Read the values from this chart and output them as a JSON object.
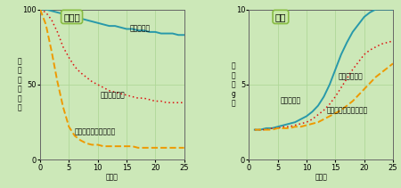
{
  "bg_color": "#cce8b8",
  "plot_bg_color": "#cce8b8",
  "left_title": "生存率",
  "right_title": "成長",
  "xlabel": "日　数",
  "left_ylabel": "生\n存\n率\n（\n％\n）",
  "right_ylabel": "体\n重\n（\ng\n）",
  "left_xlim": [
    0,
    25
  ],
  "left_ylim": [
    0,
    100
  ],
  "right_xlim": [
    0,
    25
  ],
  "right_ylim": [
    0,
    10
  ],
  "left_xticks": [
    0,
    5,
    10,
    15,
    20,
    25
  ],
  "left_yticks": [
    0,
    50,
    100
  ],
  "right_xticks": [
    0,
    5,
    10,
    15,
    20,
    25
  ],
  "right_yticks": [
    0,
    5,
    10
  ],
  "wood_color": "#2899aa",
  "metal_color": "#dd1111",
  "concrete_color": "#ee9900",
  "survival_days": [
    0,
    1,
    2,
    3,
    4,
    5,
    6,
    7,
    8,
    9,
    10,
    11,
    12,
    13,
    14,
    15,
    16,
    17,
    18,
    19,
    20,
    21,
    22,
    23,
    24,
    25
  ],
  "survival_wood": [
    100,
    100,
    99,
    98,
    97,
    96,
    95,
    94,
    93,
    92,
    91,
    90,
    89,
    89,
    88,
    87,
    87,
    86,
    86,
    85,
    85,
    84,
    84,
    84,
    83,
    83
  ],
  "survival_metal": [
    100,
    98,
    93,
    85,
    75,
    68,
    62,
    58,
    55,
    52,
    50,
    48,
    46,
    45,
    44,
    43,
    42,
    41,
    41,
    40,
    39,
    39,
    38,
    38,
    38,
    38
  ],
  "survival_concrete": [
    100,
    90,
    72,
    52,
    35,
    22,
    16,
    13,
    11,
    10,
    10,
    9,
    9,
    9,
    9,
    9,
    9,
    8,
    8,
    8,
    8,
    8,
    8,
    8,
    8,
    8
  ],
  "growth_days": [
    1,
    2,
    3,
    4,
    5,
    6,
    7,
    8,
    9,
    10,
    11,
    12,
    13,
    14,
    15,
    16,
    17,
    18,
    19,
    20,
    21,
    22,
    23,
    24,
    25
  ],
  "growth_wood": [
    2.0,
    2.0,
    2.1,
    2.1,
    2.2,
    2.3,
    2.4,
    2.5,
    2.7,
    2.9,
    3.2,
    3.6,
    4.2,
    5.0,
    6.0,
    7.0,
    7.8,
    8.5,
    9.0,
    9.5,
    9.8,
    10.0,
    10.0,
    10.0,
    10.0
  ],
  "growth_metal": [
    2.0,
    2.0,
    2.0,
    2.1,
    2.1,
    2.2,
    2.2,
    2.3,
    2.4,
    2.5,
    2.7,
    3.0,
    3.3,
    3.7,
    4.2,
    4.8,
    5.4,
    6.0,
    6.5,
    7.0,
    7.3,
    7.5,
    7.7,
    7.8,
    7.9
  ],
  "growth_concrete": [
    2.0,
    2.0,
    2.0,
    2.0,
    2.1,
    2.1,
    2.1,
    2.2,
    2.2,
    2.3,
    2.4,
    2.5,
    2.7,
    2.9,
    3.1,
    3.3,
    3.6,
    3.9,
    4.3,
    4.7,
    5.1,
    5.5,
    5.8,
    6.1,
    6.4
  ],
  "label_wood": "木製ケージ",
  "label_metal": "金属製ケージ",
  "label_concrete": "コンクリート製ケージ",
  "title_box_color": "#c8e8a8",
  "title_box_border": "#88bb44",
  "grid_color": "#b0d898",
  "tick_fontsize": 6,
  "label_fontsize": 5.5,
  "annot_fontsize": 5.5
}
